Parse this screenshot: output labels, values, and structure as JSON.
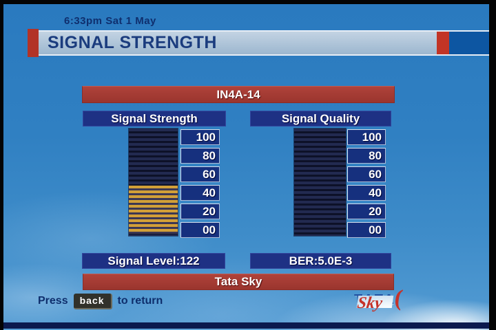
{
  "header": {
    "datetime": "6:33pm Sat 1 May",
    "title": "SIGNAL STRENGTH"
  },
  "satellite": {
    "name": "IN4A-14"
  },
  "meters": [
    {
      "header": "Signal Strength",
      "scale": [
        "100",
        "80",
        "60",
        "40",
        "20",
        "00"
      ],
      "fill_percent": 45,
      "fill_height": "45%",
      "footer": "Signal Level:122"
    },
    {
      "header": "Signal Quality",
      "scale": [
        "100",
        "80",
        "60",
        "40",
        "20",
        "00"
      ],
      "fill_percent": 0,
      "fill_height": "0%",
      "footer": "BER:5.0E-3"
    }
  ],
  "provider_banner": "Tata Sky",
  "footer": {
    "press_label": "Press",
    "back_button": "back",
    "return_label": "to return"
  },
  "logo": {
    "tata": "TATA",
    "swoosh": "(",
    "sky": "Sky"
  },
  "colors": {
    "banner_red": "#a53a32",
    "panel_navy": "#1e3184",
    "meter_fill_orange": "#d2a038",
    "sky_blue": "#3384c4",
    "titlebar_accent_red": "#b23327",
    "titlebar_blue_block": "#0d56a2"
  }
}
